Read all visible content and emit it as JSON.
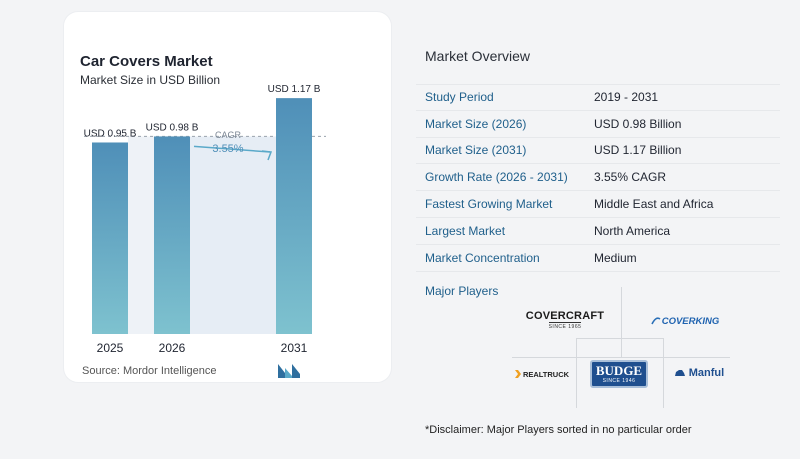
{
  "chart_data": {
    "type": "bar",
    "title": "Car Covers Market",
    "subtitle": "Market Size in USD Billion",
    "categories": [
      "2025",
      "2026",
      "2031"
    ],
    "values": [
      0.95,
      0.98,
      1.17
    ],
    "data_labels": [
      "USD 0.95 B",
      "USD 0.98 B",
      "USD 1.17 B"
    ],
    "cagr_label": "CAGR",
    "cagr_value": "3.55%",
    "ylim": [
      0,
      1.25
    ],
    "bar_color": "#4f8fb8",
    "bar_color_bottom": "#7ec2cf",
    "reference_line": 0.98
  },
  "source": "Source: Mordor Intelligence",
  "overview": {
    "title": "Market Overview",
    "rows": [
      {
        "label": "Study Period",
        "value": "2019 - 2031"
      },
      {
        "label": "Market Size (2026)",
        "value": "USD 0.98 Billion"
      },
      {
        "label": "Market Size (2031)",
        "value": "USD 1.17 Billion"
      },
      {
        "label": "Growth Rate (2026 - 2031)",
        "value": "3.55% CAGR"
      },
      {
        "label": "Fastest Growing Market",
        "value": "Middle East and Africa"
      },
      {
        "label": "Largest Market",
        "value": "North America"
      },
      {
        "label": "Market Concentration",
        "value": "Medium"
      }
    ]
  },
  "players": {
    "title": "Major Players",
    "covercraft": "COVERCRAFT",
    "covercraft_sub": "SINCE 1965",
    "coverking": "COVERKING",
    "realtruck": "REALTRUCK",
    "budge": "BUDGE",
    "budge_sub": "SINCE 1946",
    "manful": "Manful"
  },
  "disclaimer": "*Disclaimer: Major Players sorted in no particular order"
}
